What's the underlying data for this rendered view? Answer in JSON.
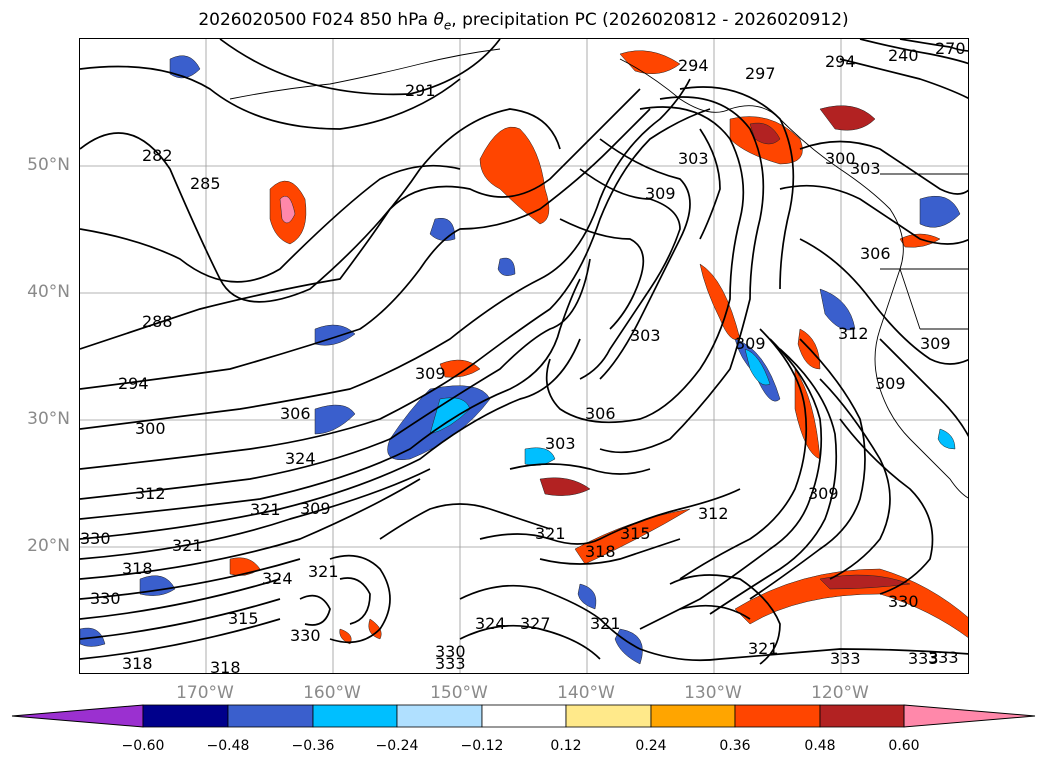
{
  "title_prefix": "2026020500 F024 850 hPa ",
  "title_symbol": "θ",
  "title_subscript": "e",
  "title_suffix": ", precipitation PC (2026020812 - 2026020912)",
  "lat_labels": [
    "50°N",
    "40°N",
    "30°N",
    "20°N"
  ],
  "lon_labels": [
    "170°W",
    "160°W",
    "150°W",
    "140°W",
    "130°W",
    "120°W"
  ],
  "colorbar": {
    "ticks": [
      "−0.60",
      "−0.48",
      "−0.36",
      "−0.24",
      "−0.12",
      "0.12",
      "0.24",
      "0.36",
      "0.48",
      "0.60"
    ],
    "colors": [
      "#9b30d0",
      "#00008b",
      "#3a5fcd",
      "#00bfff",
      "#b0e0ff",
      "#ffffff",
      "#ffe98a",
      "#ffa500",
      "#ff4500",
      "#b22222",
      "#ff88aa"
    ]
  },
  "contour_labels": [
    "291",
    "294",
    "297",
    "294",
    "288",
    "282",
    "285",
    "288",
    "294",
    "300",
    "306",
    "312",
    "324",
    "321",
    "309",
    "309",
    "303",
    "306",
    "303",
    "309",
    "303",
    "309",
    "309",
    "312",
    "306",
    "309",
    "300",
    "303",
    "309",
    "303",
    "312",
    "318",
    "315",
    "321",
    "330",
    "318",
    "330",
    "321",
    "324",
    "321",
    "315",
    "330",
    "318",
    "318",
    "333",
    "330",
    "324",
    "327",
    "321",
    "333",
    "330",
    "321",
    "333",
    "333",
    "240",
    "270"
  ]
}
